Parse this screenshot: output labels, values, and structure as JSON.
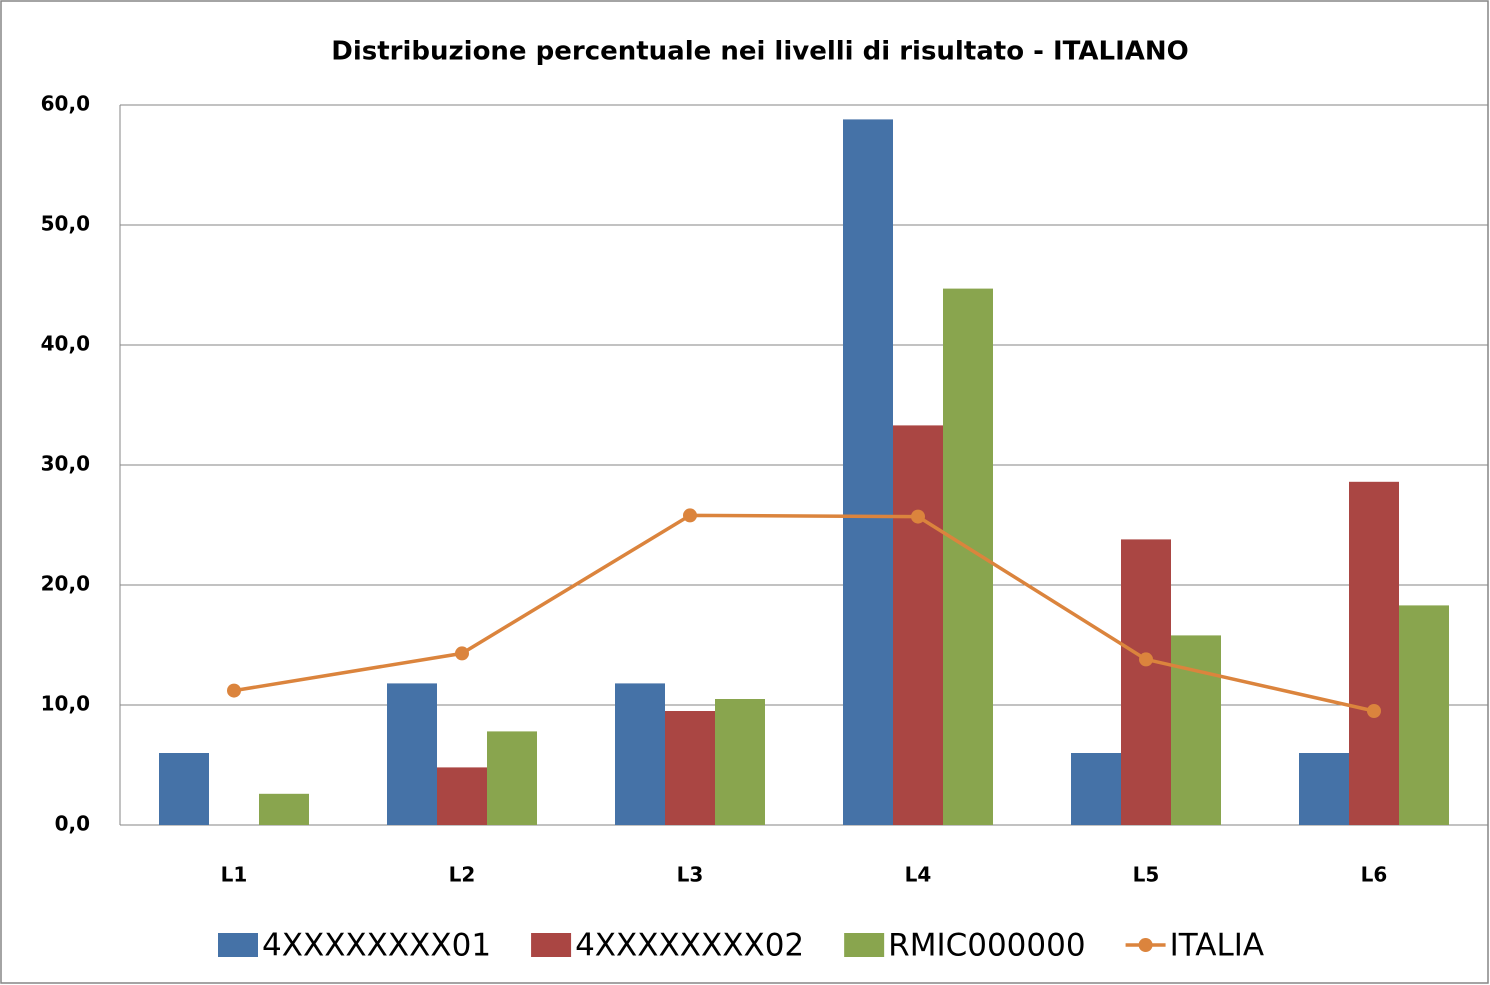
{
  "chart_data": {
    "type": "bar",
    "title": "Distribuzione percentuale nei livelli di risultato - ITALIANO",
    "categories": [
      "L1",
      "L2",
      "L3",
      "L4",
      "L5",
      "L6"
    ],
    "series": [
      {
        "name": "4XXXXXXXX01",
        "color": "#4572a7",
        "values": [
          6.0,
          11.8,
          11.8,
          58.8,
          6.0,
          6.0
        ]
      },
      {
        "name": "4XXXXXXXX02",
        "color": "#aa4643",
        "values": [
          0,
          4.8,
          9.5,
          33.3,
          23.8,
          28.6
        ]
      },
      {
        "name": "RMIC000000",
        "color": "#89a54e",
        "values": [
          2.6,
          7.8,
          10.5,
          44.7,
          15.8,
          18.3
        ]
      },
      {
        "name": "ITALIA",
        "color": "#db843d",
        "type": "line",
        "values": [
          11.2,
          14.3,
          25.8,
          25.7,
          13.8,
          9.5
        ]
      }
    ],
    "ylim": [
      0,
      60
    ],
    "yticks": [
      {
        "value": 0,
        "label": "0,0"
      },
      {
        "value": 10,
        "label": "10,0"
      },
      {
        "value": 20,
        "label": "20,0"
      },
      {
        "value": 30,
        "label": "30,0"
      },
      {
        "value": 40,
        "label": "40,0"
      },
      {
        "value": 50,
        "label": "50,0"
      },
      {
        "value": 60,
        "label": "60,0"
      }
    ],
    "grid": true,
    "legend": "bottom"
  }
}
